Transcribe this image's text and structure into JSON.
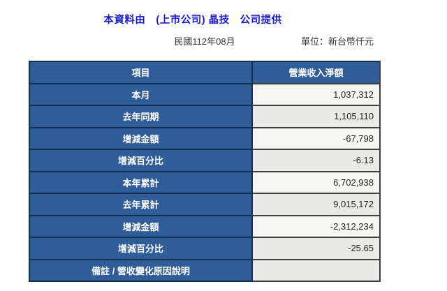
{
  "page": {
    "title": "本資料由　(上市公司) 晶技　公司提供",
    "period": "民國112年08月",
    "unit_label": "單位：新台幣仟元"
  },
  "table": {
    "headers": [
      "項目",
      "營業收入淨額"
    ],
    "rows": [
      {
        "label": "本月",
        "value": "1,037,312"
      },
      {
        "label": "去年同期",
        "value": "1,105,110"
      },
      {
        "label": "增減金額",
        "value": "-67,798"
      },
      {
        "label": "增減百分比",
        "value": "-6.13"
      },
      {
        "label": "本年累計",
        "value": "6,702,938"
      },
      {
        "label": "去年累計",
        "value": "9,015,172"
      },
      {
        "label": "增減金額",
        "value": "-2,312,234"
      },
      {
        "label": "增減百分比",
        "value": "-25.65"
      },
      {
        "label": "備註 / 營收變化原因說明",
        "value": ""
      }
    ]
  },
  "colors": {
    "title_text": "#1a1ad0",
    "cell_blue": "#305d98",
    "border_navy": "#152f52",
    "border_gray": "#3f3f3f",
    "value_bg_light": "#f6f6f3",
    "value_bg_gray": "#e9e9e6"
  }
}
